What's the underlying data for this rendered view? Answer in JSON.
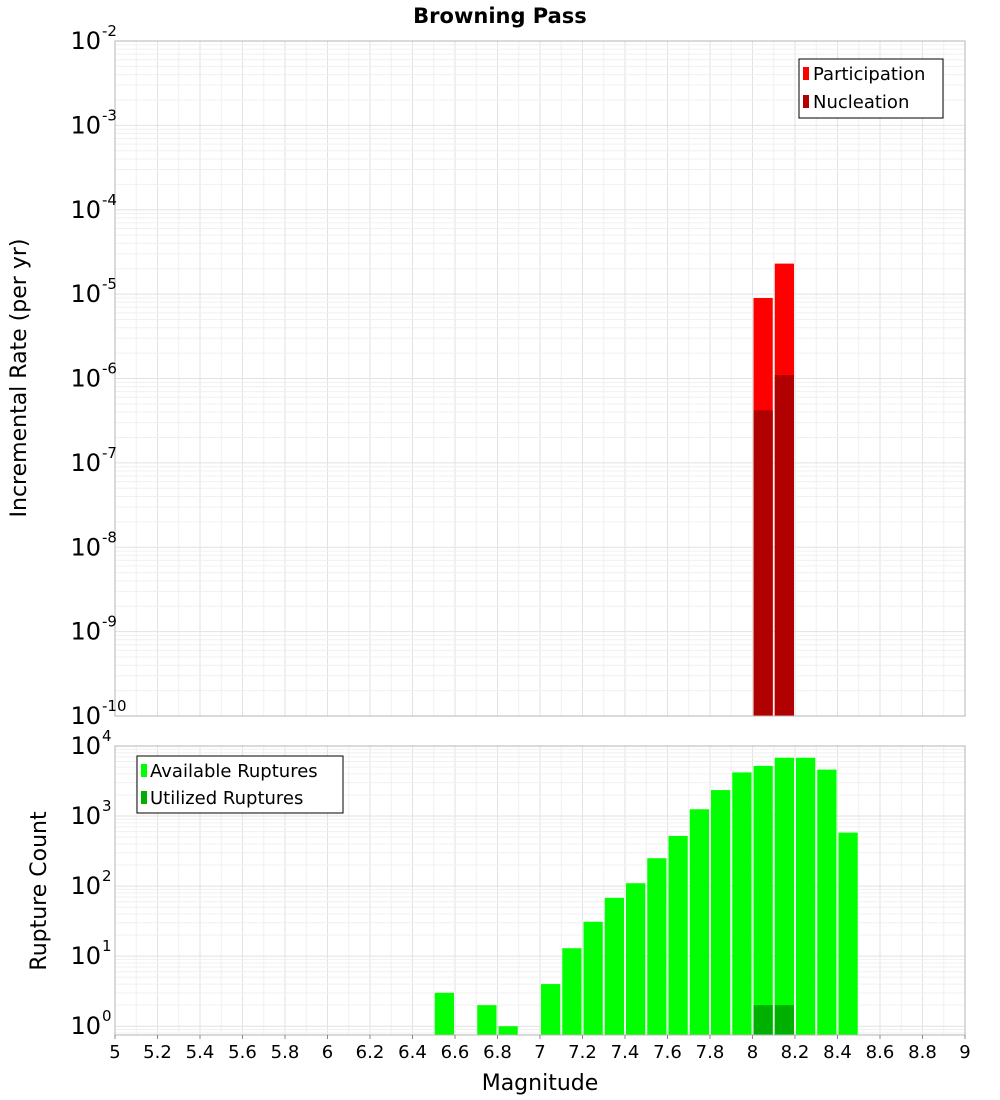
{
  "chart_data": [
    {
      "type": "bar",
      "title": "Browning Pass",
      "xlabel": "",
      "ylabel": "Incremental Rate (per yr)",
      "yscale": "log",
      "ylim": [
        1e-10,
        0.01
      ],
      "xlim": [
        5,
        9
      ],
      "y_tick_exponents": [
        -10,
        -9,
        -8,
        -7,
        -6,
        -5,
        -4,
        -3,
        -2
      ],
      "bar_width": 0.1,
      "grid": true,
      "legend_position": "top-right",
      "series": [
        {
          "name": "Participation",
          "color": "#ff0000",
          "x": [
            8.05,
            8.15
          ],
          "values": [
            9e-06,
            2.3e-05
          ]
        },
        {
          "name": "Nucleation",
          "color": "#b00000",
          "x": [
            8.05,
            8.15
          ],
          "values": [
            4.2e-07,
            1.1e-06
          ]
        }
      ]
    },
    {
      "type": "bar",
      "title": "",
      "xlabel": "Magnitude",
      "ylabel": "Rupture Count",
      "yscale": "log",
      "ylim": [
        0.75,
        10000
      ],
      "xlim": [
        5,
        9
      ],
      "y_tick_exponents": [
        0,
        1,
        2,
        3,
        4
      ],
      "x_ticks": [
        "5",
        "5.2",
        "5.4",
        "5.6",
        "5.8",
        "6",
        "6.2",
        "6.4",
        "6.6",
        "6.8",
        "7",
        "7.2",
        "7.4",
        "7.6",
        "7.8",
        "8",
        "8.2",
        "8.4",
        "8.6",
        "8.8",
        "9"
      ],
      "bar_width": 0.1,
      "grid": true,
      "legend_position": "top-left",
      "series": [
        {
          "name": "Available Ruptures",
          "color": "#00ff00",
          "x": [
            6.55,
            6.75,
            6.85,
            7.05,
            7.15,
            7.25,
            7.35,
            7.45,
            7.55,
            7.65,
            7.75,
            7.85,
            7.95,
            8.05,
            8.15,
            8.25,
            8.35,
            8.45
          ],
          "values": [
            3,
            2,
            1,
            4,
            13,
            31,
            68,
            110,
            250,
            520,
            1250,
            2350,
            4200,
            5200,
            6800,
            6800,
            4600,
            580
          ]
        },
        {
          "name": "Utilized Ruptures",
          "color": "#00b000",
          "x": [
            8.05,
            8.15
          ],
          "values": [
            2,
            2
          ]
        }
      ]
    }
  ]
}
